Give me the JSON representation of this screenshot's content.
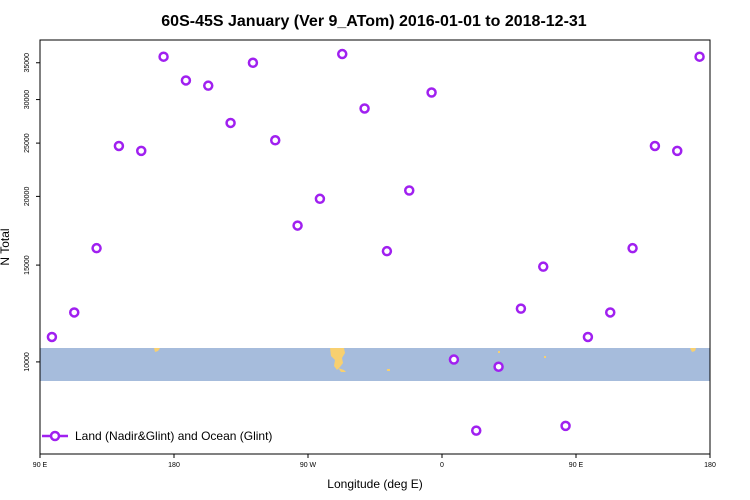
{
  "chart_data": {
    "type": "scatter",
    "title": "60S-45S January (Ver 9_ATom)   2016-01-01 to 2018-12-31",
    "xlabel": "Longitude (deg E)",
    "ylabel": "N Total",
    "x_ticks": [
      {
        "value": 90,
        "label": "90 E"
      },
      {
        "value": 180,
        "label": "180"
      },
      {
        "value": 270,
        "label": "90 W"
      },
      {
        "value": 360,
        "label": "0"
      },
      {
        "value": 450,
        "label": "90 E"
      },
      {
        "value": 540,
        "label": "180"
      }
    ],
    "y_ticks": [
      10000,
      15000,
      20000,
      25000,
      30000,
      35000
    ],
    "xlim": [
      90,
      540
    ],
    "ylim": [
      6800,
      38500
    ],
    "y_scale": "log",
    "grid": false,
    "legend": {
      "position": "bottom-left",
      "label": "Land (Nadir&Glint) and Ocean (Glint)"
    },
    "series": [
      {
        "name": "Land (Nadir&Glint) and Ocean (Glint)",
        "color": "#a020f0",
        "points": [
          {
            "x": 98,
            "y": 11100
          },
          {
            "x": 113,
            "y": 12300
          },
          {
            "x": 128,
            "y": 16100
          },
          {
            "x": 143,
            "y": 24700
          },
          {
            "x": 158,
            "y": 24200
          },
          {
            "x": 173,
            "y": 35900
          },
          {
            "x": 188,
            "y": 32500
          },
          {
            "x": 203,
            "y": 31800
          },
          {
            "x": 218,
            "y": 27200
          },
          {
            "x": 233,
            "y": 35000
          },
          {
            "x": 248,
            "y": 25300
          },
          {
            "x": 263,
            "y": 17700
          },
          {
            "x": 278,
            "y": 19800
          },
          {
            "x": 293,
            "y": 36300
          },
          {
            "x": 308,
            "y": 28900
          },
          {
            "x": 323,
            "y": 15900
          },
          {
            "x": 338,
            "y": 20500
          },
          {
            "x": 353,
            "y": 30900
          },
          {
            "x": 368,
            "y": 10100
          },
          {
            "x": 383,
            "y": 7500
          },
          {
            "x": 398,
            "y": 9800
          },
          {
            "x": 413,
            "y": 12500
          },
          {
            "x": 428,
            "y": 14900
          },
          {
            "x": 443,
            "y": 7650
          },
          {
            "x": 458,
            "y": 11100
          },
          {
            "x": 473,
            "y": 12300
          },
          {
            "x": 488,
            "y": 16100
          },
          {
            "x": 503,
            "y": 24700
          },
          {
            "x": 518,
            "y": 24200
          },
          {
            "x": 533,
            "y": 35900
          }
        ]
      }
    ]
  }
}
